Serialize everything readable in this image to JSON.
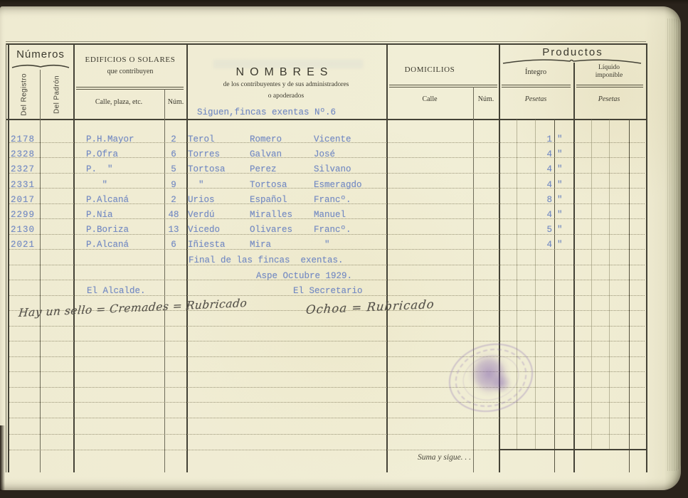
{
  "colors": {
    "paper": "#f0ecd4",
    "typewriter_ink": "#7289c2",
    "printed_ink": "#3b392e",
    "stamp_ink": "#8668b4",
    "handwriting_ink": "#55524a"
  },
  "header": {
    "numeros": {
      "title": "Números",
      "col_registro": "Del Registro",
      "col_padron": "Del Padrón"
    },
    "edificios": {
      "title": "EDIFICIOS O SOLARES",
      "subtitle": "que contribuyen",
      "col_calle": "Calle, plaza, etc.",
      "col_num": "Núm."
    },
    "nombres": {
      "title": "NOMBRES",
      "subtitle1": "de los contribuyentes y de sus administradores",
      "subtitle2": "o apoderados"
    },
    "domicilios": {
      "title": "DOMICILIOS",
      "col_calle": "Calle",
      "col_num": "Núm."
    },
    "productos": {
      "title": "Productos",
      "col_integro": "Íntegro",
      "col_liquido_1": "Líquido",
      "col_liquido_2": "imponible",
      "unit_integro": "Pesetas",
      "unit_liquido": "Pesetas"
    }
  },
  "section_note": "Siguen,fincas exentas Nº.6",
  "rows": [
    {
      "registro": "2178",
      "calle": "P.H.Mayor",
      "num": "2",
      "n1": "Terol",
      "n2": "Romero",
      "n3": "Vicente",
      "integro": "1",
      "cts": "\""
    },
    {
      "registro": "2328",
      "calle": "P.Ofra",
      "num": "6",
      "n1": "Torres",
      "n2": "Galvan",
      "n3": "José",
      "integro": "4",
      "cts": "\""
    },
    {
      "registro": "2327",
      "calle": "P.  \"",
      "num": "5",
      "n1": "Tortosa",
      "n2": "Perez",
      "n3": "Silvano",
      "integro": "4",
      "cts": "\""
    },
    {
      "registro": "2331",
      "calle": "   \"",
      "num": "9",
      "n1": "  \"",
      "n2": "Tortosa",
      "n3": "Esmeragdo",
      "integro": "4",
      "cts": "\""
    },
    {
      "registro": "2017",
      "calle": "P.Alcaná",
      "num": "2",
      "n1": "Urios",
      "n2": "Español",
      "n3": "Francº.",
      "integro": "8",
      "cts": "\""
    },
    {
      "registro": "2299",
      "calle": "P.Nía",
      "num": "48",
      "n1": "Verdú",
      "n2": "Miralles",
      "n3": "Manuel",
      "integro": "4",
      "cts": "\""
    },
    {
      "registro": "2130",
      "calle": "P.Boriza",
      "num": "13",
      "n1": "Vicedo",
      "n2": "Olivares",
      "n3": "Francº.",
      "integro": "5",
      "cts": "\""
    },
    {
      "registro": "2021",
      "calle": "P.Alcaná",
      "num": "6",
      "n1": "Iñiesta",
      "n2": "Mira",
      "n3": "  \"",
      "integro": "4",
      "cts": "\""
    }
  ],
  "footer": {
    "closing_line": "Final de las fincas  exentas.",
    "date_line": "Aspe Octubre 1929.",
    "alcalde": "El Alcalde.",
    "secretario": "El Secretario",
    "hand_left": "Hay un sello = Cremades = Rubricado",
    "hand_right": "Ochoa = Rubricado",
    "suma": "Suma y sigue. .  ."
  }
}
